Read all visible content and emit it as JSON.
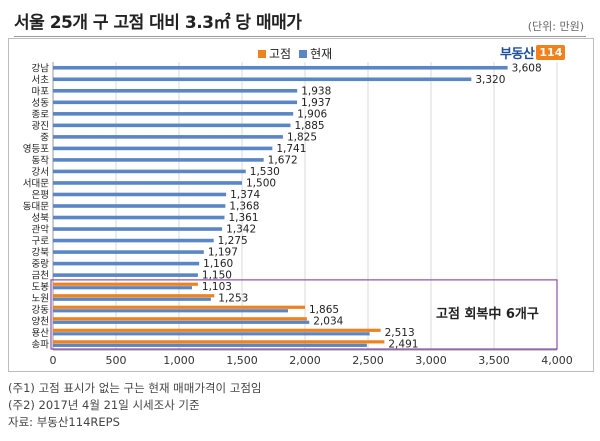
{
  "header": {
    "title": "서울 25개 구 고점 대비 3.3㎡ 당 매매가",
    "unit": "(단위: 만원)"
  },
  "logo": {
    "text": "부동산",
    "box": "114"
  },
  "callout": {
    "label": "고점 회복中 6개구"
  },
  "notes": [
    "(주1) 고점 표시가 없는 구는 현재 매매가격이 고점임",
    "(주2) 2017년 4월 21일 시세조사 기준",
    "자료: 부동산114REPS"
  ],
  "colors": {
    "peak": "#f0821e",
    "current": "#5b86c5",
    "callout_border": "#8b4fa8",
    "grid": "#d9d9d9"
  },
  "chart_data": {
    "type": "bar",
    "orientation": "horizontal",
    "categories": [
      "강남",
      "서초",
      "마포",
      "성동",
      "종로",
      "광진",
      "중",
      "영등포",
      "동작",
      "강서",
      "서대문",
      "은평",
      "동대문",
      "성북",
      "관악",
      "구로",
      "강북",
      "중랑",
      "금천",
      "도봉",
      "노원",
      "강동",
      "양천",
      "용산",
      "송파"
    ],
    "series": [
      {
        "name": "고점",
        "color": "#f0821e",
        "values": [
          null,
          null,
          null,
          null,
          null,
          null,
          null,
          null,
          null,
          null,
          null,
          null,
          null,
          null,
          null,
          null,
          null,
          null,
          null,
          1150,
          1280,
          2000,
          2015,
          2600,
          2630
        ]
      },
      {
        "name": "현재",
        "color": "#5b86c5",
        "values": [
          3608,
          3320,
          1938,
          1937,
          1906,
          1885,
          1825,
          1741,
          1672,
          1530,
          1500,
          1374,
          1368,
          1361,
          1342,
          1275,
          1197,
          1160,
          1150,
          1103,
          1253,
          1865,
          2034,
          2513,
          2491
        ]
      }
    ],
    "data_labels": [
      "3,608",
      "3,320",
      "1,938",
      "1,937",
      "1,906",
      "1,885",
      "1,825",
      "1,741",
      "1,672",
      "1,530",
      "1,500",
      "1,374",
      "1,368",
      "1,361",
      "1,342",
      "1,275",
      "1,197",
      "1,160",
      "1,150",
      "1,103",
      "1,253",
      "1,865",
      "2,034",
      "2,513",
      "2,491"
    ],
    "xlim": [
      0,
      4000
    ],
    "xticks": [
      0,
      500,
      1000,
      1500,
      2000,
      2500,
      3000,
      3500,
      4000
    ],
    "xtick_labels": [
      "0",
      "500",
      "1,000",
      "1,500",
      "2,000",
      "2,500",
      "3,000",
      "3,500",
      "4,000"
    ],
    "grid": true,
    "legend_position": "top-center"
  }
}
